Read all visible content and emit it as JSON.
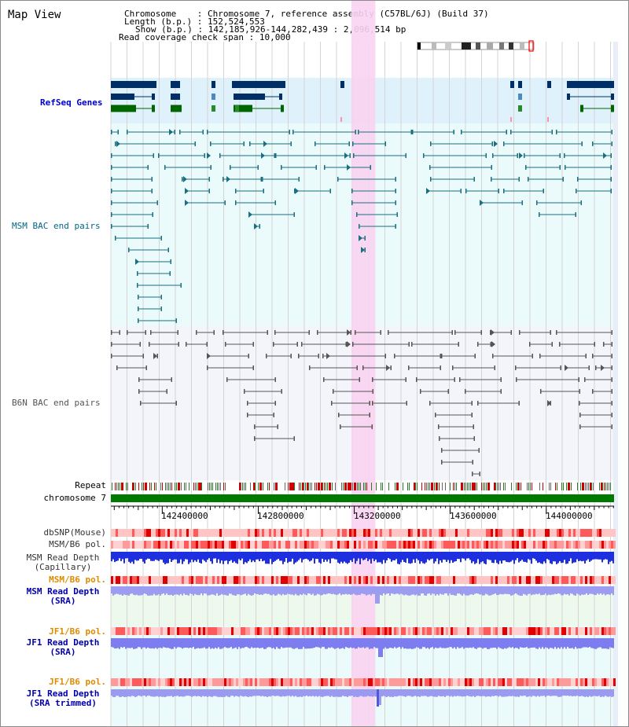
{
  "title": "Map View",
  "header": {
    "chromosome_key": "Chromosome",
    "chromosome_value": "Chromosome 7, reference assembly (C57BL/6J) (Build 37)",
    "length_key": "Length (b.p.)",
    "length_value": "152,524,553",
    "show_key": "Show (b.p.)",
    "show_value": "142,185,926-144,282,439 : 2,096,514 bp",
    "coverage_key": "Read coverage check span",
    "coverage_value": "10,000"
  },
  "tracks": {
    "refseq": "RefSeq Genes",
    "msm_bac": "MSM BAC end pairs",
    "b6n_bac": "B6N BAC end pairs",
    "repeat": "Repeat",
    "chromosome": "chromosome 7",
    "dbsnp": "dbSNP(Mouse)",
    "msm_b6_pol": "MSM/B6 pol.",
    "msm_depth_cap_1": "MSM Read Depth",
    "msm_depth_cap_2": "(Capillary)",
    "msm_b6_pol_2": "MSM/B6 pol.",
    "msm_depth_sra_1": "MSM Read Depth",
    "msm_depth_sra_2": "(SRA)",
    "jf1_pol_1": "JF1/B6 pol.",
    "jf1_depth_sra_1": "JF1 Read Depth",
    "jf1_depth_sra_2": "(SRA)",
    "jf1_pol_2": "JF1/B6 pol.",
    "jf1_depth_trim_1": "JF1 Read Depth",
    "jf1_depth_trim_2": "(SRA trimmed)"
  },
  "axis": {
    "ticks": [
      "142400000",
      "142800000",
      "143200000",
      "143600000",
      "144000000"
    ],
    "tick_values": [
      142400000,
      142800000,
      143200000,
      143600000,
      144000000
    ],
    "range": [
      142185926,
      144282439
    ]
  },
  "highlight_range": [
    143188000,
    143288000
  ],
  "colors": {
    "refseq_label": "#0000cc",
    "msm_label": "#006688",
    "b6n_label": "#555555",
    "orange_label": "#e08a00",
    "blue_label": "#0000aa",
    "chromosome_bar": "#007a00",
    "highlight": "#f9d3f1",
    "refseq_bg": "#dff1fb",
    "bac_bg": "#ebfafa",
    "grey_bg": "#f4f5fb"
  }
}
